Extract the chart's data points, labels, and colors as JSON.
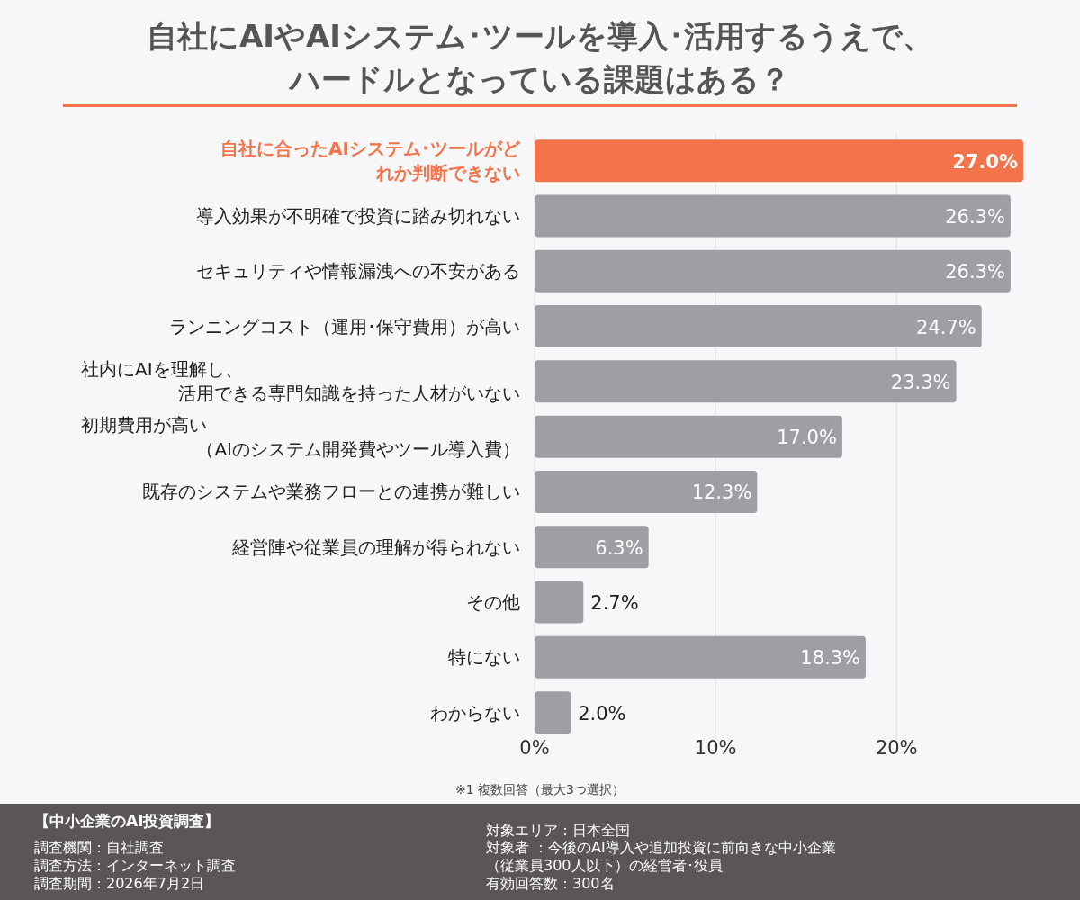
{
  "chart_data": {
    "type": "bar",
    "orientation": "horizontal",
    "title": "自社にAIやAIシステム･ツールを導入･活用するうえで、ハードルとなっている課題はある？",
    "categories": [
      "自社に合ったAIシステム･ツールがどれか判断できない",
      "導入効果が不明確で投資に踏み切れない",
      "セキュリティや情報漏洩への不安がある",
      "ランニングコスト（運用･保守費用）が高い",
      "社内にAIを理解し、活用できる専門知識を持った人材がいない",
      "初期費用が高い（AIのシステム開発費やツール導入費）",
      "既存のシステムや業務フローとの連携が難しい",
      "経営陣や従業員の理解が得られない",
      "その他",
      "特にない",
      "わからない"
    ],
    "values": [
      27.0,
      26.3,
      26.3,
      24.7,
      23.3,
      17.0,
      12.3,
      6.3,
      2.7,
      18.3,
      2.0
    ],
    "colors": [
      "#f5734a",
      "#a09ea3",
      "#a09ea3",
      "#a09ea3",
      "#a09ea3",
      "#a09ea3",
      "#a09ea3",
      "#a09ea3",
      "#a09ea3",
      "#a09ea3",
      "#a09ea3"
    ],
    "xlim": [
      0,
      27
    ],
    "xticks": [
      {
        "value": 0,
        "label": "0%"
      },
      {
        "value": 10,
        "label": "10%"
      },
      {
        "value": 20,
        "label": "20%"
      }
    ],
    "value_labels": [
      "27.0%",
      "26.3%",
      "26.3%",
      "24.7%",
      "23.3%",
      "17.0%",
      "12.3%",
      "6.3%",
      "2.7%",
      "18.3%",
      "2.0%"
    ],
    "grid": "x",
    "annotations": [
      "※1 複数回答（最大3つ選択）",
      "【中小企業のAI投資調査】",
      "調査機関：自社調査",
      "調査方法：インターネット調査",
      "調査期間：2026年7月2日",
      "対象エリア：日本全国",
      "対象者 ：今後のAI導入や追加投資に前向きな中小企業（従業員300人以下）の経営者･役員",
      "有効回答数：300名"
    ]
  }
}
